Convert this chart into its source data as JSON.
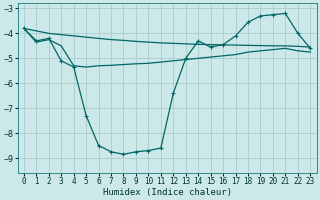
{
  "xlabel": "Humidex (Indice chaleur)",
  "bg_color": "#cce8e8",
  "grid_color": "#aacccc",
  "line_color": "#006666",
  "xlim": [
    -0.5,
    23.5
  ],
  "ylim": [
    -9.6,
    -2.8
  ],
  "yticks": [
    -9,
    -8,
    -7,
    -6,
    -5,
    -4,
    -3
  ],
  "xticks": [
    0,
    1,
    2,
    3,
    4,
    5,
    6,
    7,
    8,
    9,
    10,
    11,
    12,
    13,
    14,
    15,
    16,
    17,
    18,
    19,
    20,
    21,
    22,
    23
  ],
  "line1_x": [
    0,
    1,
    2,
    3,
    4,
    5,
    6,
    7,
    8,
    9,
    10,
    11,
    12,
    13,
    14,
    15,
    16,
    17,
    18,
    19,
    20,
    21,
    22,
    23
  ],
  "line1_y": [
    -3.8,
    -3.9,
    -4.0,
    -4.05,
    -4.1,
    -4.15,
    -4.2,
    -4.25,
    -4.28,
    -4.32,
    -4.35,
    -4.38,
    -4.4,
    -4.42,
    -4.44,
    -4.45,
    -4.46,
    -4.47,
    -4.48,
    -4.49,
    -4.5,
    -4.5,
    -4.52,
    -4.55
  ],
  "line2_x": [
    0,
    1,
    2,
    3,
    4,
    5,
    6,
    7,
    8,
    9,
    10,
    11,
    12,
    13,
    14,
    15,
    16,
    17,
    18,
    19,
    20,
    21,
    22,
    23
  ],
  "line2_y": [
    -3.8,
    -4.3,
    -4.2,
    -5.1,
    -5.35,
    -7.3,
    -8.5,
    -8.75,
    -8.85,
    -8.75,
    -8.7,
    -8.6,
    -6.4,
    -5.0,
    -4.3,
    -4.55,
    -4.45,
    -4.1,
    -3.55,
    -3.3,
    -3.25,
    -3.2,
    -4.0,
    -4.6
  ],
  "line3_x": [
    0,
    1,
    2,
    3,
    4,
    5,
    6,
    7,
    8,
    9,
    10,
    11,
    12,
    13,
    14,
    15,
    16,
    17,
    18,
    19,
    20,
    21,
    22,
    23
  ],
  "line3_y": [
    -3.8,
    -4.35,
    -4.25,
    -4.5,
    -5.3,
    -5.35,
    -5.3,
    -5.28,
    -5.25,
    -5.22,
    -5.2,
    -5.15,
    -5.1,
    -5.05,
    -5.0,
    -4.95,
    -4.9,
    -4.85,
    -4.75,
    -4.7,
    -4.65,
    -4.6,
    -4.7,
    -4.75
  ]
}
